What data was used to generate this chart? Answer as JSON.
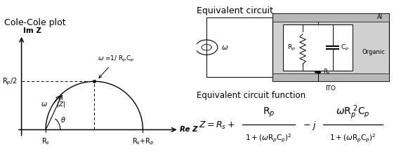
{
  "title_left": "Cole-Cole plot",
  "title_right": "Equivalent circuit",
  "title_func": "Equivalent circuit function",
  "Rs": 0.25,
  "Rp": 1.0,
  "bg_color": "#ffffff"
}
